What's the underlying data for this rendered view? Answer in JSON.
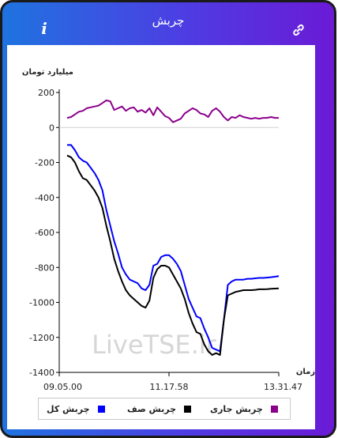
{
  "header": {
    "title": "چربش",
    "info_icon": "info-icon",
    "link_icon": "link-icon"
  },
  "colors": {
    "total": "#0000ff",
    "queue": "#000000",
    "running": "#8b008b",
    "header_start": "#1f73e0",
    "header_end": "#6b1ad6"
  },
  "watermark": "LiveTSE.ir",
  "legend": [
    {
      "label": "چربش کل",
      "color": "#0000ff"
    },
    {
      "label": "چربش صف",
      "color": "#000000"
    },
    {
      "label": "چربش جاری",
      "color": "#8b008b"
    }
  ],
  "chart_data": {
    "type": "line",
    "ylabel": "میلیارد تومان",
    "xlabel": "زمان",
    "y_ticks": [
      200,
      0,
      -200,
      -400,
      -600,
      -800,
      -1000,
      -1200,
      -1400
    ],
    "x_tick_labels": [
      "09.05.00",
      "11.17.58",
      "13.31.47"
    ],
    "ylim": [
      -1400,
      200
    ],
    "grid": false,
    "series": [
      {
        "name": "چربش جاری",
        "values": [
          55,
          60,
          75,
          90,
          95,
          110,
          115,
          120,
          125,
          140,
          155,
          150,
          100,
          110,
          120,
          95,
          110,
          115,
          90,
          100,
          85,
          110,
          70,
          115,
          90,
          65,
          55,
          30,
          40,
          50,
          80,
          95,
          110,
          100,
          80,
          75,
          60,
          95,
          110,
          90,
          60,
          40,
          60,
          55,
          70,
          60,
          55,
          50,
          55,
          50,
          55,
          55,
          60,
          55,
          55
        ]
      },
      {
        "name": "چربش کل",
        "values": [
          -100,
          -100,
          -130,
          -170,
          -190,
          -200,
          -230,
          -260,
          -300,
          -360,
          -470,
          -560,
          -650,
          -720,
          -800,
          -840,
          -870,
          -880,
          -890,
          -920,
          -930,
          -900,
          -790,
          -780,
          -740,
          -730,
          -730,
          -750,
          -780,
          -820,
          -900,
          -980,
          -1030,
          -1080,
          -1090,
          -1150,
          -1200,
          -1260,
          -1270,
          -1280,
          -1100,
          -900,
          -880,
          -870,
          -870,
          -870,
          -865,
          -865,
          -862,
          -860,
          -860,
          -858,
          -856,
          -853,
          -850
        ]
      },
      {
        "name": "چربش صف",
        "values": [
          -160,
          -170,
          -200,
          -250,
          -290,
          -300,
          -330,
          -360,
          -400,
          -460,
          -560,
          -650,
          -750,
          -820,
          -880,
          -930,
          -960,
          -980,
          -1000,
          -1020,
          -1030,
          -990,
          -860,
          -810,
          -790,
          -790,
          -800,
          -840,
          -880,
          -920,
          -980,
          -1060,
          -1120,
          -1170,
          -1180,
          -1240,
          -1280,
          -1300,
          -1290,
          -1300,
          -1100,
          -960,
          -950,
          -940,
          -935,
          -930,
          -930,
          -930,
          -928,
          -925,
          -925,
          -924,
          -922,
          -921,
          -920
        ]
      }
    ]
  }
}
